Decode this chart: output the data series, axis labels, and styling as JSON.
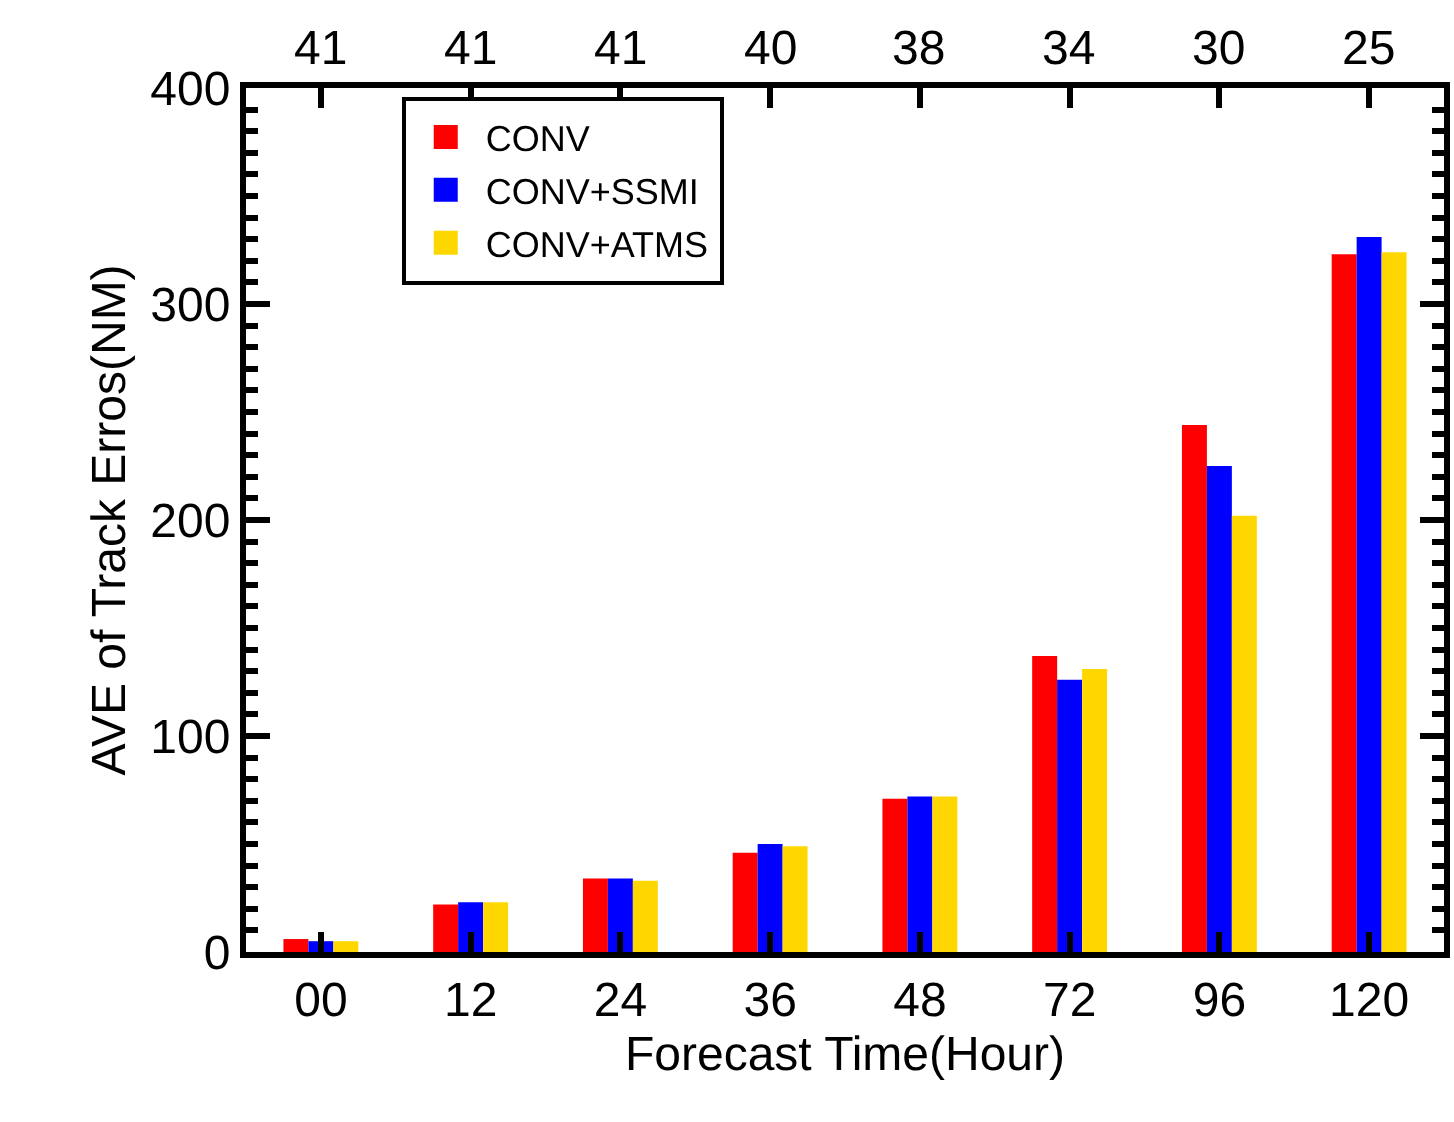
{
  "chart_data": {
    "type": "bar",
    "xlabel": "Forecast Time(Hour)",
    "ylabel": "AVE of Track Erros(NM)",
    "categories": [
      "00",
      "12",
      "24",
      "36",
      "48",
      "72",
      "96",
      "120"
    ],
    "series": [
      {
        "name": "CONV",
        "color": "#ff0000",
        "values": [
          6,
          22,
          34,
          46,
          71,
          137,
          244,
          323
        ]
      },
      {
        "name": "CONV+SSMI",
        "color": "#0000ff",
        "values": [
          5,
          23,
          34,
          50,
          72,
          126,
          225,
          331
        ]
      },
      {
        "name": "CONV+ATMS",
        "color": "#ffd700",
        "values": [
          5,
          23,
          33,
          49,
          72,
          131,
          202,
          324
        ]
      }
    ],
    "ylim": [
      0,
      400
    ],
    "yticks": [
      0,
      {
        "value": 10,
        "label": null
      },
      {
        "value": 20,
        "label": null
      },
      {
        "value": 30,
        "label": null
      },
      {
        "value": 40,
        "label": null
      },
      {
        "value": 50,
        "label": null
      },
      {
        "value": 60,
        "label": null
      },
      {
        "value": 70,
        "label": null
      },
      {
        "value": 80,
        "label": null
      },
      {
        "value": 90,
        "label": null
      },
      100,
      {
        "value": 110,
        "label": null
      },
      {
        "value": 120,
        "label": null
      },
      {
        "value": 130,
        "label": null
      },
      {
        "value": 140,
        "label": null
      },
      {
        "value": 150,
        "label": null
      },
      {
        "value": 160,
        "label": null
      },
      {
        "value": 170,
        "label": null
      },
      {
        "value": 180,
        "label": null
      },
      {
        "value": 190,
        "label": null
      },
      200,
      {
        "value": 210,
        "label": null
      },
      {
        "value": 220,
        "label": null
      },
      {
        "value": 230,
        "label": null
      },
      {
        "value": 240,
        "label": null
      },
      {
        "value": 250,
        "label": null
      },
      {
        "value": 260,
        "label": null
      },
      {
        "value": 270,
        "label": null
      },
      {
        "value": 280,
        "label": null
      },
      {
        "value": 290,
        "label": null
      },
      300,
      {
        "value": 310,
        "label": null
      },
      {
        "value": 320,
        "label": null
      },
      {
        "value": 330,
        "label": null
      },
      {
        "value": 340,
        "label": null
      },
      {
        "value": 350,
        "label": null
      },
      {
        "value": 360,
        "label": null
      },
      {
        "value": 370,
        "label": null
      },
      {
        "value": 380,
        "label": null
      },
      {
        "value": 390,
        "label": null
      },
      400
    ],
    "annotations": [
      {
        "text": "41",
        "x": "00"
      },
      {
        "text": "41",
        "x": "12"
      },
      {
        "text": "41",
        "x": "24"
      },
      {
        "text": "40",
        "x": "36"
      },
      {
        "text": "38",
        "x": "48"
      },
      {
        "text": "34",
        "x": "72"
      },
      {
        "text": "30",
        "x": "96"
      },
      {
        "text": "25",
        "x": "120"
      }
    ],
    "grid": false,
    "legend": "top left"
  }
}
